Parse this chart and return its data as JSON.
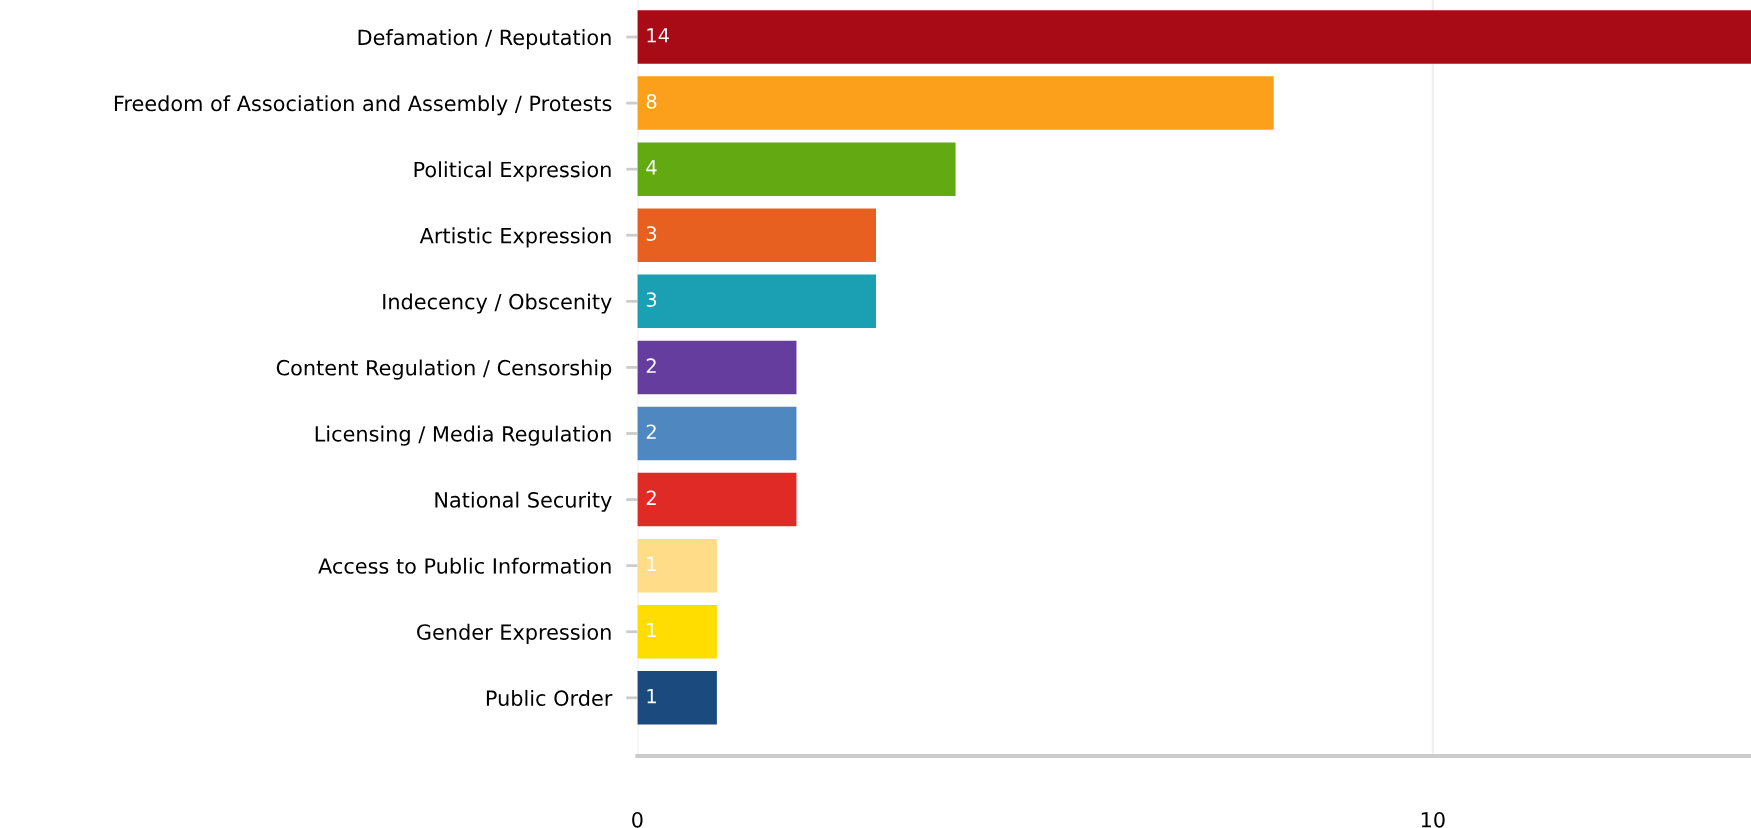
{
  "chart_data": {
    "type": "bar",
    "orientation": "horizontal",
    "categories": [
      "Defamation / Reputation",
      "Freedom of Association and Assembly / Protests",
      "Political Expression",
      "Artistic Expression",
      "Indecency / Obscenity",
      "Content Regulation / Censorship",
      "Licensing / Media Regulation",
      "National Security",
      "Access to Public Information",
      "Gender Expression",
      "Public Order"
    ],
    "values": [
      14,
      8,
      4,
      3,
      3,
      2,
      2,
      2,
      1,
      1,
      1
    ],
    "colors": [
      "#a80b16",
      "#fc9f1a",
      "#63a912",
      "#e8601f",
      "#1b9fb3",
      "#653d9f",
      "#4f88c0",
      "#e02a25",
      "#ffdd88",
      "#ffdd00",
      "#1b4a7e"
    ],
    "xlim": [
      0,
      14
    ],
    "xticks": [
      0,
      10
    ],
    "grid": "x",
    "data_labels": true
  }
}
